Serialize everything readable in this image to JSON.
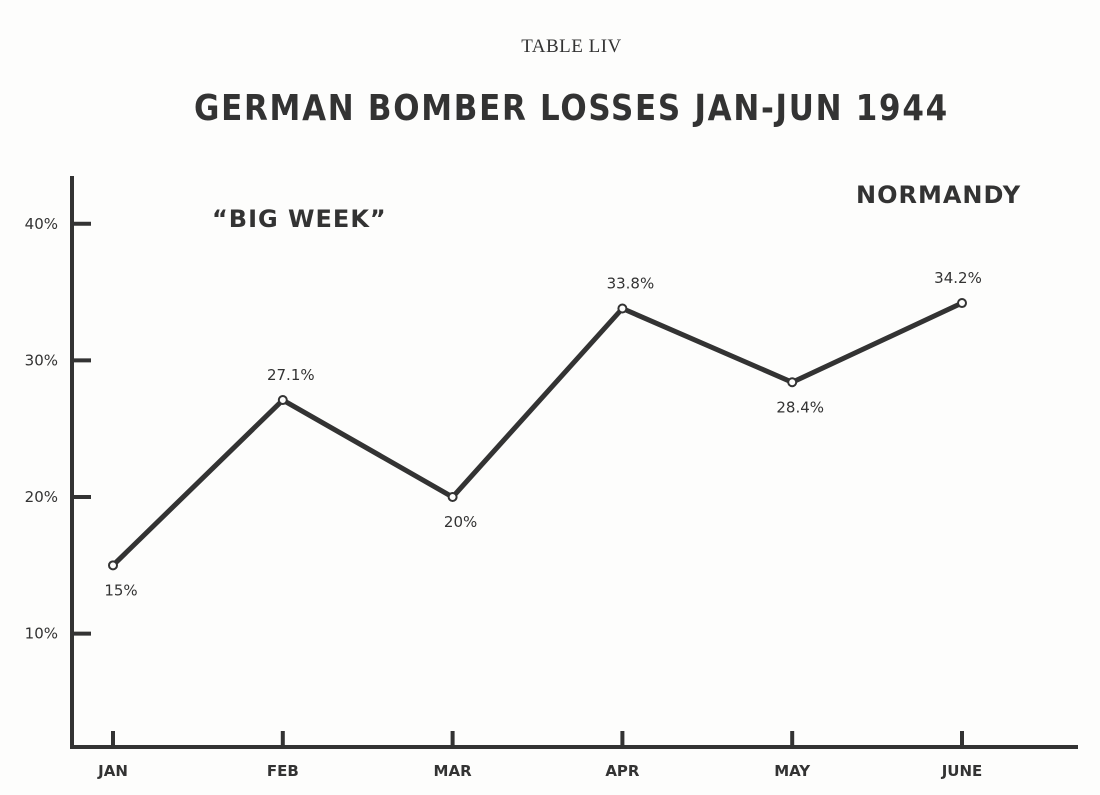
{
  "header": {
    "table_label": "TABLE LIV",
    "title": "GERMAN BOMBER LOSSES JAN-JUN 1944"
  },
  "chart_data": {
    "type": "line",
    "title": "GERMAN BOMBER LOSSES JAN-JUN 1944",
    "xlabel": "",
    "ylabel": "",
    "categories": [
      "JAN",
      "FEB",
      "MAR",
      "APR",
      "MAY",
      "JUNE"
    ],
    "series": [
      {
        "values": [
          15,
          27.1,
          20,
          33.8,
          28.4,
          34.2
        ],
        "labels": [
          "15%",
          "27.1%",
          "20%",
          "33.8%",
          "28.4%",
          "34.2%"
        ]
      }
    ],
    "y_ticks": [
      10,
      20,
      30,
      40
    ],
    "y_tick_labels": [
      "10%",
      "20%",
      "30%",
      "40%"
    ],
    "ylim": [
      1.7,
      43.5
    ],
    "grid": false,
    "annotations": [
      "“BIG WEEK”",
      "NORMANDY"
    ],
    "colors": {
      "ink": "#333333",
      "background": "#fdfdfc"
    }
  }
}
